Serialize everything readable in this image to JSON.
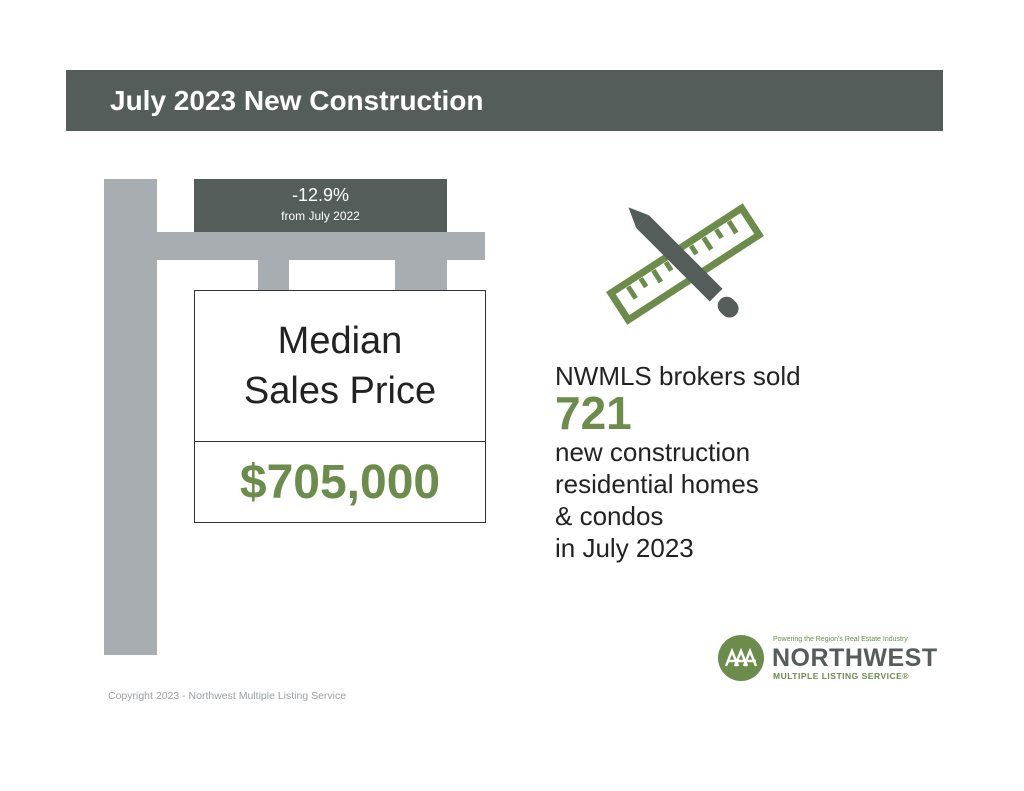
{
  "header": {
    "title": "July 2023 New Construction"
  },
  "change_badge": {
    "percent": "-12.9%",
    "comparison": "from July 2022"
  },
  "sign": {
    "label_line1": "Median",
    "label_line2": "Sales Price",
    "price": "$705,000"
  },
  "sales": {
    "lead": "NWMLS brokers sold",
    "count": "721",
    "lines": [
      "new construction",
      "residential homes",
      "& condos",
      "in July 2023"
    ]
  },
  "logo": {
    "tagline": "Powering the Region's Real Estate Industry",
    "name": "NORTHWEST",
    "subname": "MULTIPLE LISTING SERVICE",
    "registered": "®"
  },
  "footer": {
    "copyright": "Copyright 2023 - Northwest Multiple Listing Service"
  },
  "icons": {
    "tools": "pencil-ruler-icon",
    "logo_mark": "northwest-trees-logo-icon"
  },
  "colors": {
    "banner": "#545d5a",
    "accent_green": "#6b8c4a",
    "post_gray": "#a7adb1"
  }
}
